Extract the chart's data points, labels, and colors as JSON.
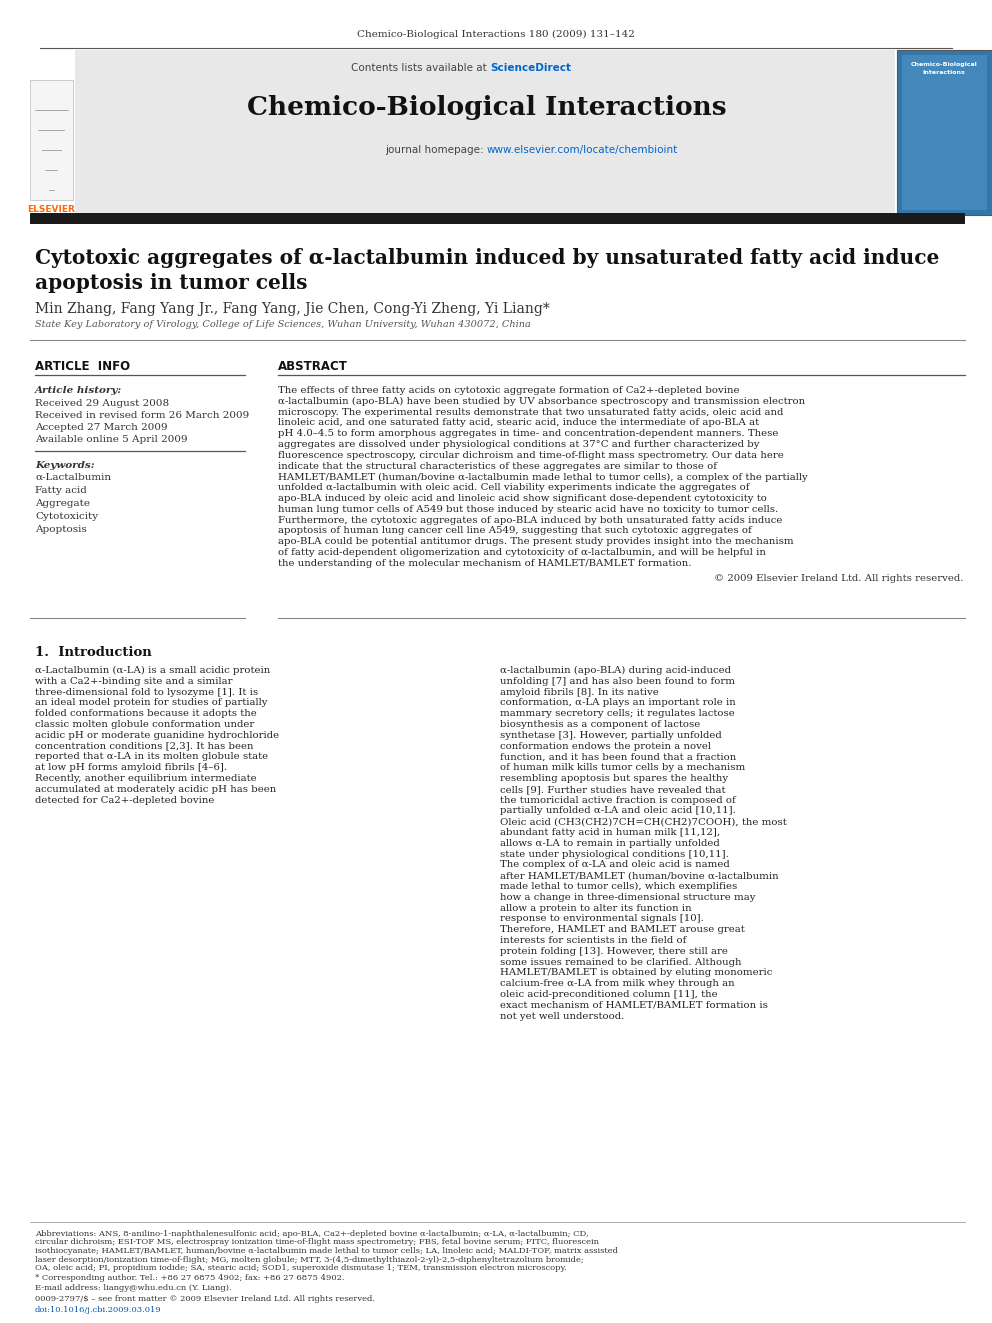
{
  "journal_header": "Chemico-Biological Interactions 180 (2009) 131–142",
  "contents_line": "Contents lists available at ScienceDirect",
  "sciencedirect_color": "#0066cc",
  "journal_name": "Chemico-Biological Interactions",
  "journal_url_prefix": "journal homepage: ",
  "journal_url": "www.elsevier.com/locate/chembioint",
  "journal_url_color": "#0066cc",
  "header_bg": "#e8e8e8",
  "dark_bar_color": "#1a1a1a",
  "title": "Cytotoxic aggregates of α-lactalbumin induced by unsaturated fatty acid induce\napoptosis in tumor cells",
  "authors": "Min Zhang, Fang Yang Jr., Fang Yang, Jie Chen, Cong-Yi Zheng, Yi Liang*",
  "affiliation": "State Key Laboratory of Virology, College of Life Sciences, Wuhan University, Wuhan 430072, China",
  "article_info_title": "ARTICLE  INFO",
  "abstract_title": "ABSTRACT",
  "article_history_label": "Article history:",
  "received": "Received 29 August 2008",
  "revised": "Received in revised form 26 March 2009",
  "accepted": "Accepted 27 March 2009",
  "available": "Available online 5 April 2009",
  "keywords_label": "Keywords:",
  "keywords": [
    "α-Lactalbumin",
    "Fatty acid",
    "Aggregate",
    "Cytotoxicity",
    "Apoptosis"
  ],
  "abstract_text": "The effects of three fatty acids on cytotoxic aggregate formation of Ca2+-depleted bovine α-lactalbumin (apo-BLA) have been studied by UV absorbance spectroscopy and transmission electron microscopy. The experimental results demonstrate that two unsaturated fatty acids, oleic acid and linoleic acid, and one saturated fatty acid, stearic acid, induce the intermediate of apo-BLA at pH 4.0–4.5 to form amorphous aggregates in time- and concentration-dependent manners. These aggregates are dissolved under physiological conditions at 37°C and further characterized by fluorescence spectroscopy, circular dichroism and time-of-flight mass spectrometry. Our data here indicate that the structural characteristics of these aggregates are similar to those of HAMLET/BAMLET (human/bovine α-lactalbumin made lethal to tumor cells), a complex of the partially unfolded α-lactalbumin with oleic acid. Cell viability experiments indicate the aggregates of apo-BLA induced by oleic acid and linoleic acid show significant dose-dependent cytotoxicity to human lung tumor cells of A549 but those induced by stearic acid have no toxicity to tumor cells. Furthermore, the cytotoxic aggregates of apo-BLA induced by both unsaturated fatty acids induce apoptosis of human lung cancer cell line A549, suggesting that such cytotoxic aggregates of apo-BLA could be potential antitumor drugs. The present study provides insight into the mechanism of fatty acid-dependent oligomerization and cytotoxicity of α-lactalbumin, and will be helpful in the understanding of the molecular mechanism of HAMLET/BAMLET formation.",
  "copyright": "© 2009 Elsevier Ireland Ltd. All rights reserved.",
  "intro_heading": "1.  Introduction",
  "intro_col1": "α-Lactalbumin (α-LA) is a small acidic protein with a Ca2+-binding site and a similar three-dimensional fold to lysozyme [1]. It is an ideal model protein for studies of partially folded conformations because it adopts the classic molten globule conformation under acidic pH or moderate guanidine hydrochloride concentration conditions [2,3]. It has been reported that α-LA in its molten globule state at low pH forms amyloid fibrils [4–6]. Recently, another equilibrium intermediate accumulated at moderately acidic pH has been detected for Ca2+-depleted bovine",
  "intro_col2": "α-lactalbumin (apo-BLA) during acid-induced unfolding [7] and has also been found to form amyloid fibrils [8].\n    In its native conformation, α-LA plays an important role in mammary secretory cells; it regulates lactose biosynthesis as a component of lactose synthetase [3]. However, partially unfolded conformation endows the protein a novel function, and it has been found that a fraction of human milk kills tumor cells by a mechanism resembling apoptosis but spares the healthy cells [9]. Further studies have revealed that the tumoricidal active fraction is composed of partially unfolded α-LA and oleic acid [10,11]. Oleic acid (CH3(CH2)7CH=CH(CH2)7COOH), the most abundant fatty acid in human milk [11,12], allows α-LA to remain in partially unfolded state under physiological conditions [10,11]. The complex of α-LA and oleic acid is named after HAMLET/BAMLET (human/bovine α-lactalbumin made lethal to tumor cells), which exemplifies how a change in three-dimensional structure may allow a protein to alter its function in response to environmental signals [10]. Therefore, HAMLET and BAMLET arouse great interests for scientists in the field of protein folding [13]. However, there still are some issues remained to be clarified. Although HAMLET/BAMLET is obtained by eluting monomeric calcium-free α-LA from milk whey through an oleic acid-preconditioned column [11], the exact mechanism of HAMLET/BAMLET formation is not yet well understood.",
  "footnote_abbreviations": "Abbreviations: ANS, 8-anilino-1-naphthalenesulfonic acid; apo-BLA, Ca2+-depleted bovine α-lactalbumin; α-LA, α-lactalbumin; CD, circular dichroism; ESI-TOF MS, electrospray ionization time-of-flight mass spectrometry; FBS, fetal bovine serum; FITC, fluorescein isothiocyanate; HAMLET/BAMLET, human/bovine α-lactalbumin made lethal to tumor cells; LA, linoleic acid; MALDI-TOF, matrix assisted laser desorption/ionization time-of-flight; MG, molten globule; MTT, 3-(4,5-dimethylthiazol-2-yl)-2,5-diphenyltetrazolium bromide; OA, oleic acid; PI, propidium iodide; SA, stearic acid; SOD1, superoxide dismutase 1; TEM, transmission electron microscopy.",
  "footnote_corresponding": "* Corresponding author. Tel.: +86 27 6875 4902; fax: +86 27 6875 4902.",
  "footnote_email": "E-mail address: liangy@whu.edu.cn (Y. Liang).",
  "bottom_line1": "0009-2797/$ – see front matter © 2009 Elsevier Ireland Ltd. All rights reserved.",
  "bottom_line2": "doi:10.1016/j.cbi.2009.03.019",
  "page_bg": "#ffffff",
  "text_color": "#000000",
  "link_color": "#0055aa"
}
